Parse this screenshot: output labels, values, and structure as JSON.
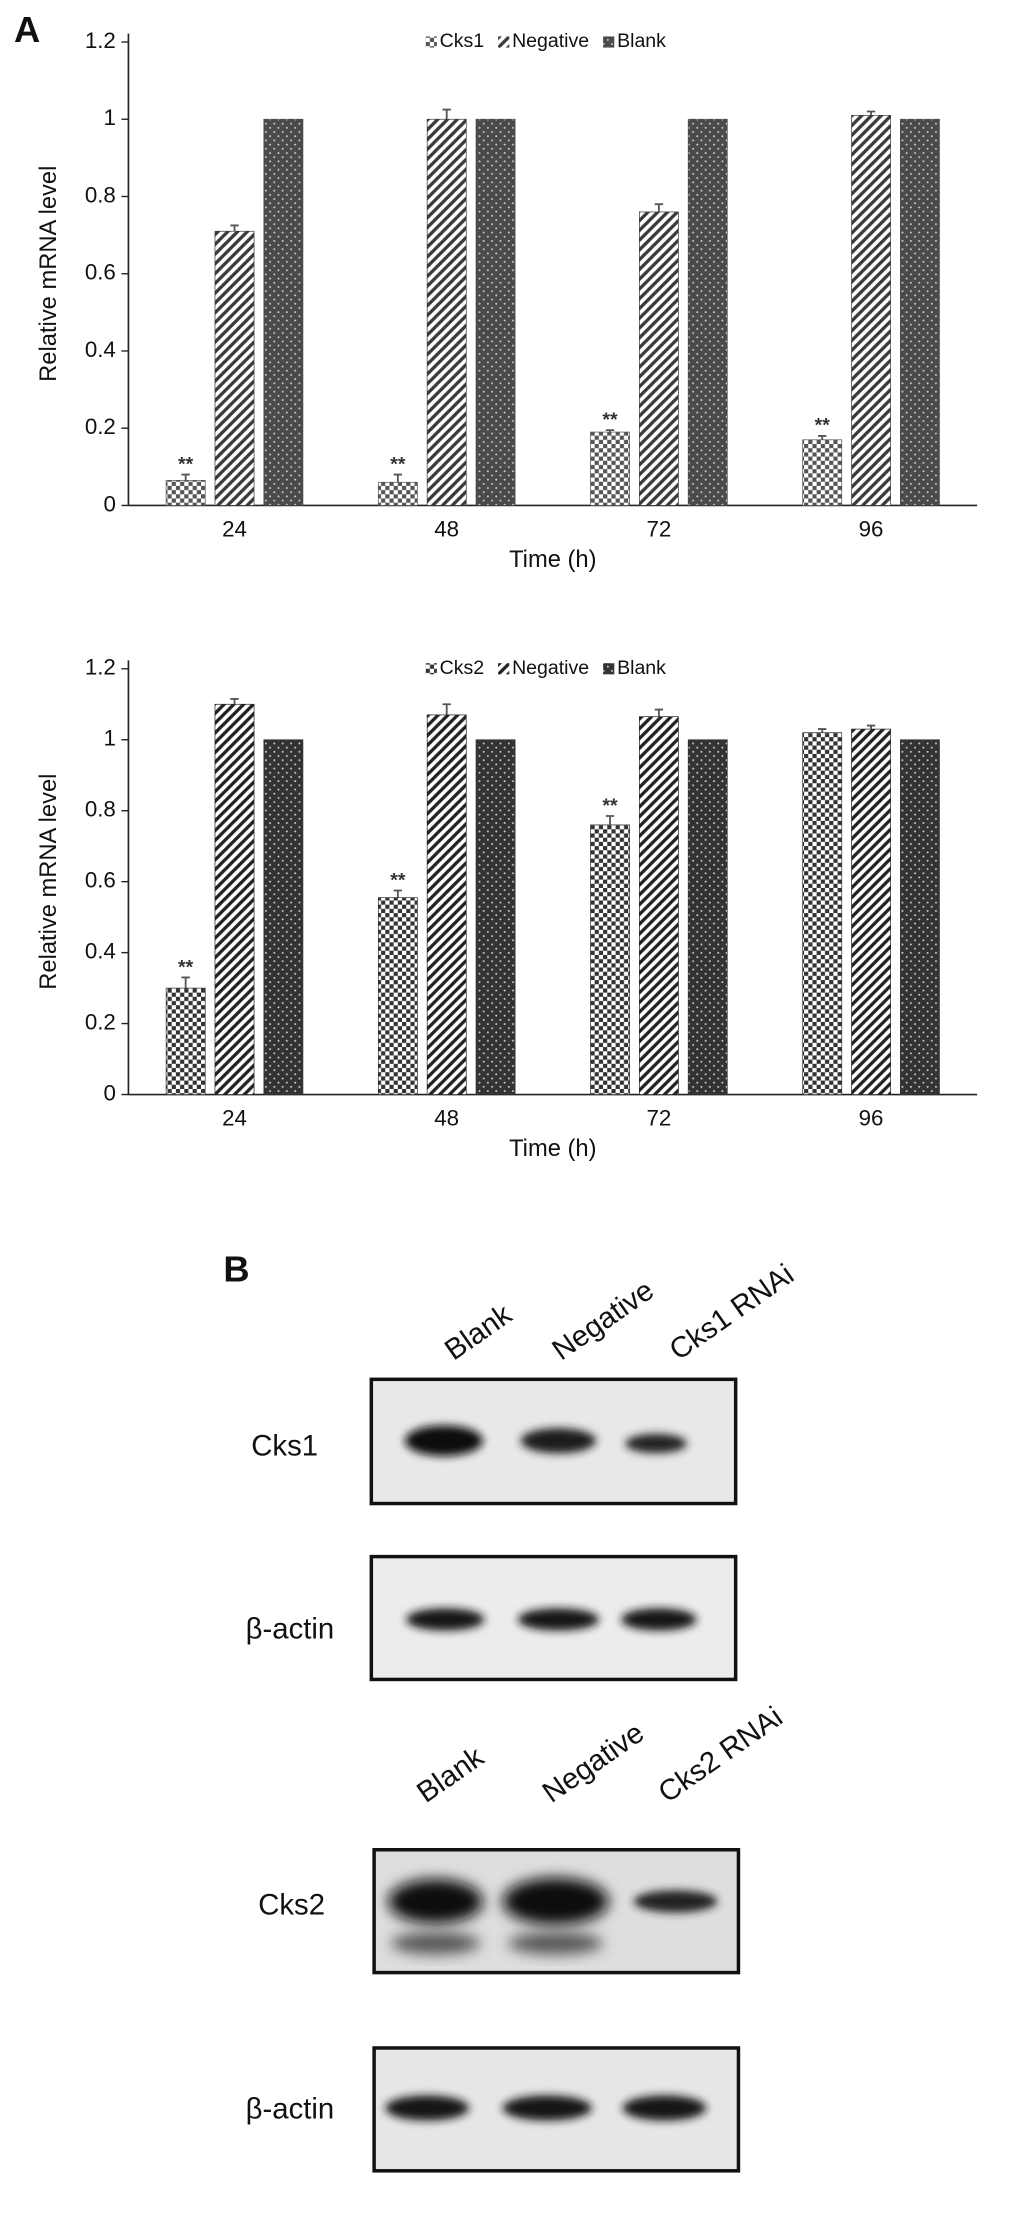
{
  "chart_data": [
    {
      "type": "bar",
      "panel": "A",
      "xlabel": "Time (h)",
      "ylabel": "Relative mRNA level",
      "categories": [
        "24",
        "48",
        "72",
        "96"
      ],
      "ylim": [
        0,
        1.2
      ],
      "yticks": [
        0,
        0.2,
        0.4,
        0.6,
        0.8,
        1,
        1.2
      ],
      "legend": "top",
      "series": [
        {
          "name": "Cks1",
          "color": "#555555",
          "pattern": "checker",
          "values": [
            0.065,
            0.06,
            0.19,
            0.17
          ],
          "errors": [
            0.015,
            0.02,
            0.005,
            0.01
          ],
          "significance": [
            "**",
            "**",
            "**",
            "**"
          ]
        },
        {
          "name": "Negative",
          "color": "#3a3a3a",
          "pattern": "stripe",
          "values": [
            0.71,
            1.0,
            0.76,
            1.01
          ],
          "errors": [
            0.015,
            0.025,
            0.02,
            0.01
          ]
        },
        {
          "name": "Blank",
          "color": "#4a4a4a",
          "pattern": "dots",
          "values": [
            1,
            1,
            1,
            1
          ]
        }
      ]
    },
    {
      "type": "bar",
      "xlabel": "Time (h)",
      "ylabel": "Relative mRNA level",
      "categories": [
        "24",
        "48",
        "72",
        "96"
      ],
      "ylim": [
        0,
        1.2
      ],
      "yticks": [
        0,
        0.2,
        0.4,
        0.6,
        0.8,
        1,
        1.2
      ],
      "legend": "top",
      "series": [
        {
          "name": "Cks2",
          "color": "#333333",
          "pattern": "checker",
          "values": [
            0.3,
            0.555,
            0.76,
            1.02
          ],
          "errors": [
            0.03,
            0.02,
            0.025,
            0.01
          ],
          "significance": [
            "**",
            "**",
            "**",
            null
          ]
        },
        {
          "name": "Negative",
          "color": "#222222",
          "pattern": "stripe",
          "values": [
            1.1,
            1.07,
            1.065,
            1.03
          ],
          "errors": [
            0.015,
            0.03,
            0.02,
            0.01
          ]
        },
        {
          "name": "Blank",
          "color": "#333333",
          "pattern": "dots",
          "values": [
            1,
            1,
            1,
            1
          ]
        }
      ]
    }
  ],
  "panel_b": {
    "label": "B",
    "blots": [
      {
        "lanes": [
          "Blank",
          "Negative",
          "Cks1 RNAi"
        ],
        "rows": [
          "Cks1",
          "β-actin"
        ]
      },
      {
        "lanes": [
          "Blank",
          "Negative",
          "Cks2 RNAi"
        ],
        "rows": [
          "Cks2",
          "β-actin"
        ]
      }
    ]
  }
}
